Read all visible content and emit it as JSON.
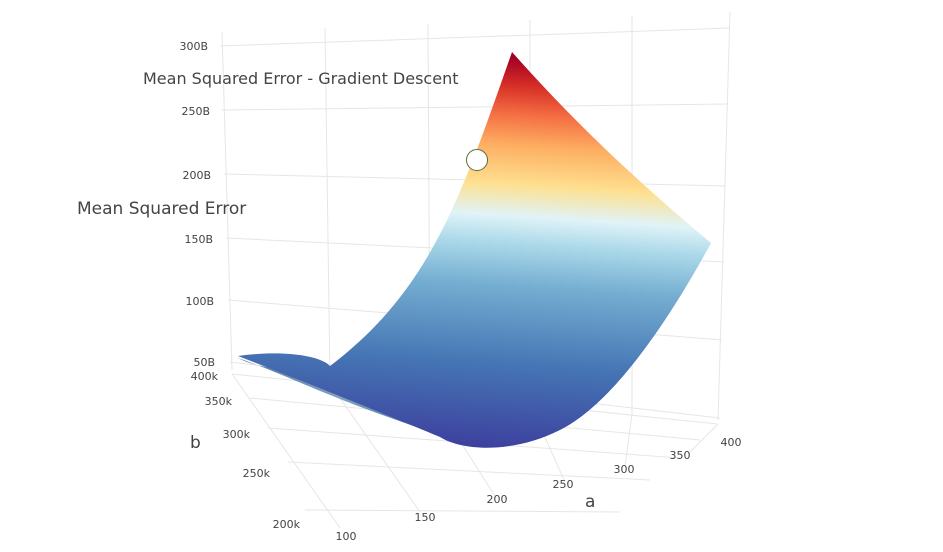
{
  "chart_data": {
    "type": "surface",
    "title": "Mean Squared Error - Gradient Descent",
    "x_axis": {
      "label": "a",
      "ticks": [
        "100",
        "150",
        "200",
        "250",
        "300",
        "350",
        "400"
      ],
      "range": [
        100,
        400
      ]
    },
    "y_axis": {
      "label": "b",
      "ticks": [
        "200k",
        "250k",
        "300k",
        "350k",
        "400k"
      ],
      "range": [
        200000,
        400000
      ]
    },
    "z_axis": {
      "label": "Mean Squared Error",
      "ticks": [
        "50B",
        "100B",
        "150B",
        "200B",
        "250B",
        "300B"
      ],
      "range": [
        50000000000,
        300000000000
      ]
    },
    "surface": {
      "description_of_shape": "parabolic valley",
      "corner_values": [
        {
          "a": 100,
          "b": 400000,
          "mse": 50000000000
        },
        {
          "a": 400,
          "b": 400000,
          "mse": 150000000000
        },
        {
          "a": 100,
          "b": 200000,
          "mse": 300000000000
        },
        {
          "a": 250,
          "b": 300000,
          "mse": 10000000000
        }
      ]
    },
    "marker": {
      "a": 150,
      "b": 215000,
      "mse": 205000000000
    },
    "colorscale": [
      "#313695",
      "#4575b4",
      "#74add1",
      "#abd9e9",
      "#e0f3f8",
      "#fee090",
      "#fdae61",
      "#f46d43",
      "#d73027",
      "#a50026"
    ],
    "grid": true
  }
}
